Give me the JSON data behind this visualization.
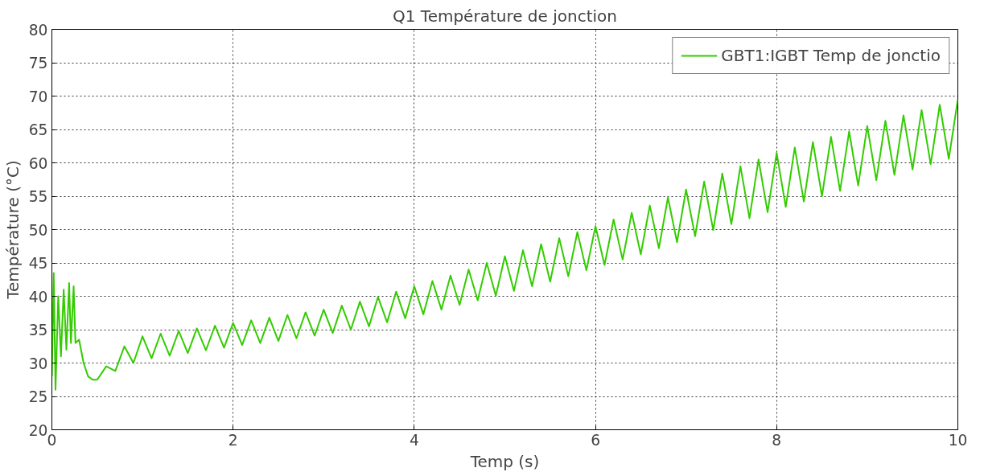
{
  "chart_data": {
    "type": "line",
    "title": "Q1 Température de jonction",
    "xlabel": "Temp (s)",
    "ylabel": "Température (°C)",
    "xlim": [
      0,
      10
    ],
    "xticks": [
      0,
      2,
      4,
      6,
      8,
      10
    ],
    "ylim": [
      20,
      80
    ],
    "yticks": [
      20,
      25,
      30,
      35,
      40,
      45,
      50,
      55,
      60,
      65,
      70,
      75,
      80
    ],
    "grid": true,
    "legend": "top right",
    "line_style": "solid",
    "series": [
      {
        "name": "GBT1:IGBT Temp de jonctio",
        "color": "#33cc00",
        "x": [
          0,
          0.02,
          0.04,
          0.07,
          0.1,
          0.13,
          0.16,
          0.19,
          0.21,
          0.24,
          0.26,
          0.3,
          0.35,
          0.4,
          0.45,
          0.5,
          0.6,
          0.7,
          0.8,
          0.9,
          1.0,
          1.1,
          1.2,
          1.3,
          1.4,
          1.5,
          1.6,
          1.7,
          1.8,
          1.9,
          2.0,
          2.1,
          2.2,
          2.3,
          2.4,
          2.5,
          2.6,
          2.7,
          2.8,
          2.9,
          3.0,
          3.1,
          3.2,
          3.3,
          3.4,
          3.5,
          3.6,
          3.7,
          3.8,
          3.9,
          4.0,
          4.1,
          4.2,
          4.3,
          4.4,
          4.5,
          4.6,
          4.7,
          4.8,
          4.9,
          5.0,
          5.1,
          5.2,
          5.3,
          5.4,
          5.5,
          5.6,
          5.7,
          5.8,
          5.9,
          6.0,
          6.1,
          6.2,
          6.3,
          6.4,
          6.5,
          6.6,
          6.7,
          6.8,
          6.9,
          7.0,
          7.1,
          7.2,
          7.3,
          7.4,
          7.5,
          7.6,
          7.7,
          7.8,
          7.9,
          8.0,
          8.1,
          8.2,
          8.3,
          8.4,
          8.5,
          8.6,
          8.7,
          8.8,
          8.9,
          9.0,
          9.1,
          9.2,
          9.3,
          9.4,
          9.5,
          9.6,
          9.7,
          9.8,
          9.9,
          10.0
        ],
        "values": [
          28,
          43.5,
          26,
          40,
          31,
          41,
          32,
          42,
          33,
          41.5,
          33,
          33.5,
          30,
          28,
          27.5,
          27.5,
          29.5,
          28.8,
          32.5,
          30,
          34,
          30.7,
          34.4,
          31.1,
          34.8,
          31.5,
          35.2,
          31.9,
          35.6,
          32.3,
          36,
          32.7,
          36.4,
          33.0,
          36.8,
          33.3,
          37.2,
          33.7,
          37.6,
          34.1,
          38,
          34.5,
          38.6,
          35.0,
          39.2,
          35.5,
          39.9,
          36.1,
          40.7,
          36.7,
          41.5,
          37.3,
          42.3,
          38.0,
          43.1,
          38.7,
          44,
          39.4,
          45,
          40.1,
          46,
          40.8,
          46.9,
          41.5,
          47.8,
          42.2,
          48.7,
          43.0,
          49.6,
          43.9,
          50.5,
          44.7,
          51.5,
          45.5,
          52.5,
          46.3,
          53.6,
          47.2,
          54.8,
          48.1,
          56,
          49.0,
          57.2,
          49.9,
          58.4,
          50.8,
          59.5,
          51.7,
          60.5,
          52.6,
          61.5,
          53.4,
          62.3,
          54.2,
          63.1,
          55,
          63.9,
          55.8,
          64.7,
          56.6,
          65.5,
          57.4,
          66.3,
          58.2,
          67.1,
          59,
          67.9,
          59.8,
          68.7,
          60.6,
          69.5
        ]
      }
    ]
  }
}
